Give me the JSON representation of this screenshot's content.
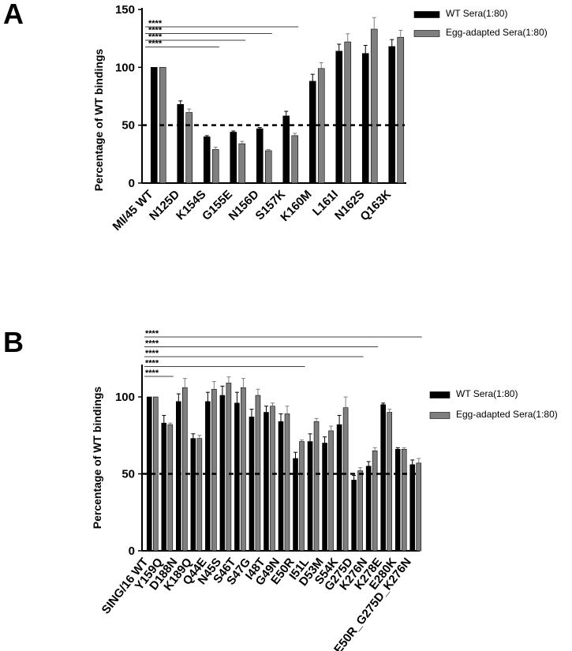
{
  "colors": {
    "wt": "#000000",
    "egg": "#7f7f7f",
    "axis": "#000000"
  },
  "chart_data": [
    {
      "panel_label": "A",
      "type": "bar",
      "ylabel": "Percentage of WT bindings",
      "ylim": [
        0,
        150
      ],
      "yticks": [
        0,
        50,
        100,
        150
      ],
      "reference_line": 50,
      "categories": [
        "MI/45 WT",
        "N125D",
        "K154S",
        "G155E",
        "N156D",
        "S157K",
        "K160M",
        "L161I",
        "N162S",
        "Q163K"
      ],
      "series": [
        {
          "name": "WT Sera(1:80)",
          "values": [
            100,
            68,
            40,
            44,
            47,
            58,
            88,
            114,
            112,
            118
          ],
          "errors": [
            0,
            3,
            1,
            1,
            1,
            4,
            6,
            6,
            7,
            6
          ]
        },
        {
          "name": "Egg-adapted Sera(1:80)",
          "values": [
            100,
            61,
            29,
            34,
            28,
            41,
            99,
            122,
            133,
            126
          ],
          "errors": [
            0,
            3,
            2,
            2,
            1,
            2,
            5,
            7,
            10,
            6
          ]
        }
      ],
      "significance": [
        {
          "label": "****",
          "from": "MI/45 WT",
          "to": "S157K"
        },
        {
          "label": "****",
          "from": "MI/45 WT",
          "to": "N156D"
        },
        {
          "label": "****",
          "from": "MI/45 WT",
          "to": "G155E"
        },
        {
          "label": "****",
          "from": "MI/45 WT",
          "to": "K154S"
        }
      ],
      "legend": "top-right"
    },
    {
      "panel_label": "B",
      "type": "bar",
      "ylabel": "Percentage of WT bindings",
      "ylim": [
        0,
        120
      ],
      "yticks": [
        0,
        50,
        100
      ],
      "reference_line": 50,
      "categories": [
        "SING/16 WT",
        "Y159Q",
        "D188N",
        "K189Q",
        "Q44E",
        "N45S",
        "S46T",
        "S47G",
        "I48T",
        "G49N",
        "E50R",
        "I51L",
        "D53M",
        "S54K",
        "G275D",
        "K276N",
        "K278E",
        "E280K",
        "E50R_G275D_K276N"
      ],
      "series": [
        {
          "name": "WT Sera(1:80)",
          "values": [
            100,
            83,
            97,
            73,
            97,
            101,
            96,
            87,
            90,
            84,
            60,
            71,
            70,
            82,
            46,
            55,
            95,
            66,
            56
          ],
          "errors": [
            0,
            5,
            5,
            3,
            6,
            6,
            7,
            5,
            4,
            5,
            4,
            5,
            4,
            6,
            3,
            3,
            1,
            1,
            3
          ]
        },
        {
          "name": "Egg-adapted Sera(1:80)",
          "values": [
            100,
            82,
            106,
            73,
            105,
            109,
            106,
            101,
            94,
            89,
            71,
            84,
            78,
            93,
            52,
            65,
            90,
            66,
            57
          ],
          "errors": [
            0,
            1,
            6,
            2,
            5,
            4,
            6,
            4,
            2,
            5,
            1,
            2,
            3,
            7,
            2,
            2,
            2,
            1,
            3
          ]
        }
      ],
      "significance": [
        {
          "label": "****",
          "from": "SING/16 WT",
          "to": "E50R_G275D_K276N"
        },
        {
          "label": "****",
          "from": "SING/16 WT",
          "to": "K276N"
        },
        {
          "label": "****",
          "from": "SING/16 WT",
          "to": "G275D"
        },
        {
          "label": "****",
          "from": "SING/16 WT",
          "to": "E50R"
        },
        {
          "label": "****",
          "from": "SING/16 WT",
          "to": "Y159Q"
        }
      ],
      "legend": "right"
    }
  ]
}
